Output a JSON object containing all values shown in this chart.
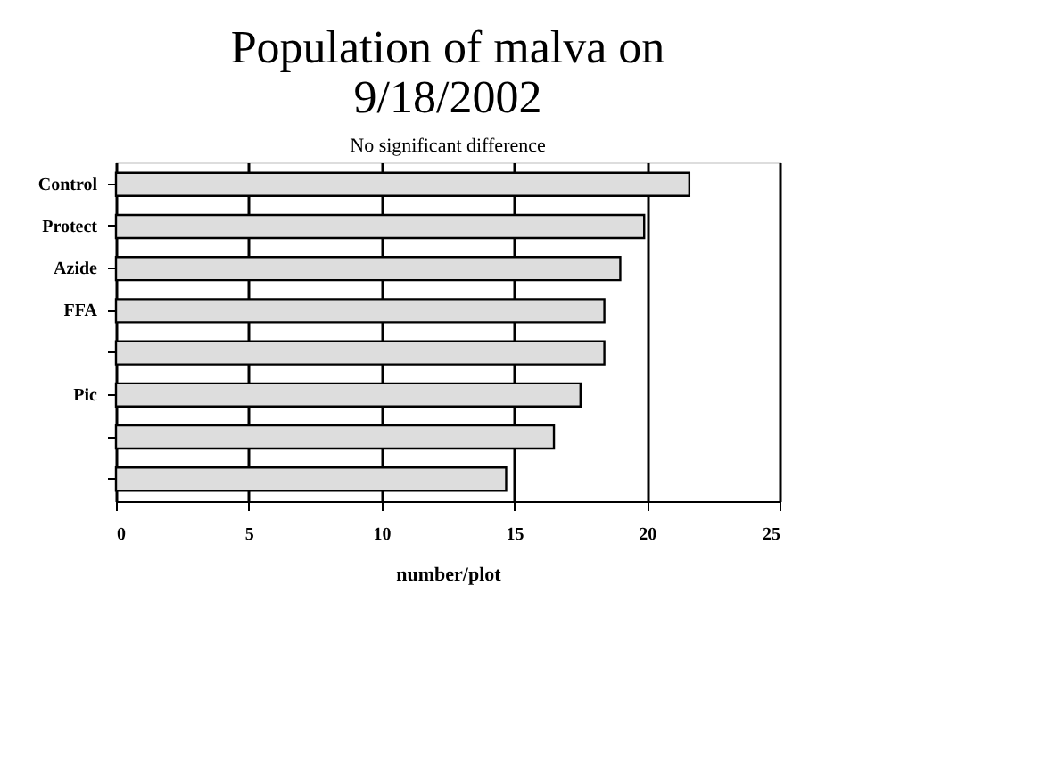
{
  "chart_data": {
    "type": "bar",
    "orientation": "horizontal",
    "title": [
      "Population of malva on",
      "9/18/2002"
    ],
    "subtitle": "No significant difference",
    "xlabel": "number/plot",
    "categories": [
      "Control",
      "Protect",
      "Azide",
      "FFA",
      null,
      "Pic",
      null,
      null
    ],
    "values": [
      21.6,
      19.9,
      19.0,
      18.4,
      18.4,
      17.5,
      16.5,
      14.7
    ],
    "color": "#dddddd",
    "xlim": [
      0,
      25
    ],
    "xticks": [
      0,
      5,
      10,
      15,
      20,
      25
    ],
    "grid": "x"
  }
}
